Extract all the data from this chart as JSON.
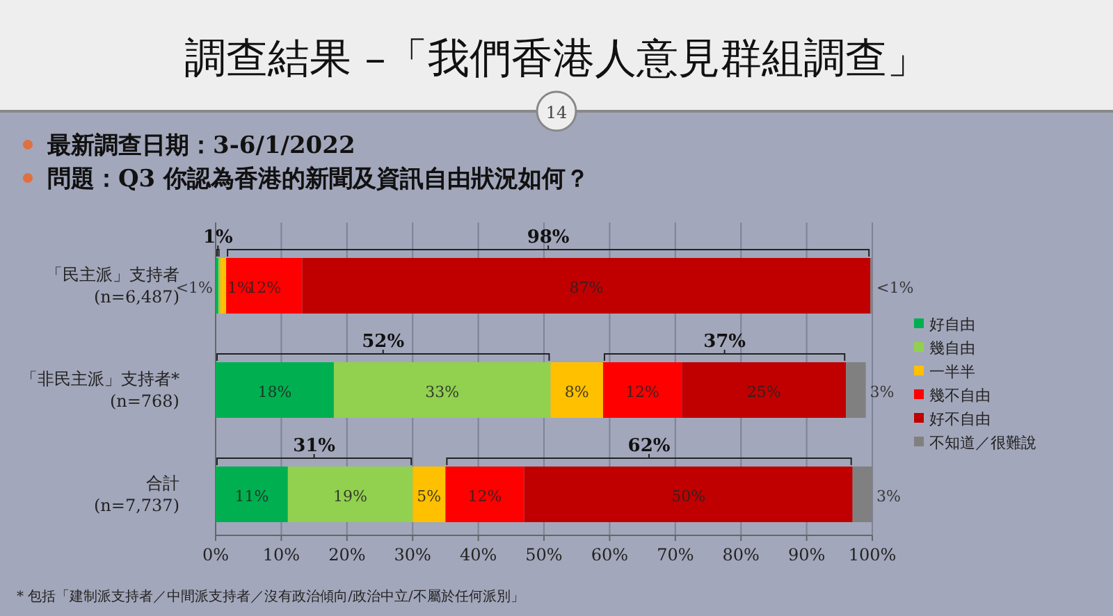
{
  "chart_data": {
    "type": "bar",
    "orientation": "horizontal",
    "stacked": true,
    "title": "調查結果 –「我們香港人意見群組調查」",
    "subtitle": "最新調查日期：3-6/1/2022\n問題：Q3 你認為香港的新聞及資訊自由狀況如何？",
    "categories": [
      "「民主派」支持者\n(n=6,487)",
      "「非民主派」支持者*\n(n=768)",
      "合計\n(n=7,737)"
    ],
    "series": [
      {
        "name": "好自由",
        "color": "#00b050",
        "values": [
          0.4,
          18,
          11
        ],
        "value_labels": [
          "<1%",
          "18%",
          "11%"
        ]
      },
      {
        "name": "幾自由",
        "color": "#92d050",
        "values": [
          0.3,
          33,
          19
        ],
        "value_labels": [
          null,
          "33%",
          "19%"
        ]
      },
      {
        "name": "一半半",
        "color": "#ffc000",
        "values": [
          0.9,
          8,
          5
        ],
        "value_labels": [
          "1%",
          "8%",
          "5%"
        ]
      },
      {
        "name": "幾不自由",
        "color": "#ff0000",
        "values": [
          11.6,
          12,
          12
        ],
        "value_labels": [
          "12%",
          "12%",
          "12%"
        ]
      },
      {
        "name": "好不自由",
        "color": "#c00000",
        "values": [
          86.5,
          25,
          50
        ],
        "value_labels": [
          "87%",
          "25%",
          "50%"
        ]
      },
      {
        "name": "不知道／很難說",
        "color": "#808080",
        "values": [
          0.3,
          3,
          3
        ],
        "value_labels": [
          "<1%",
          "3%",
          "3%"
        ]
      }
    ],
    "xlim": [
      0,
      100
    ],
    "xticks": [
      {
        "value": 0,
        "label": "0%"
      },
      {
        "value": 10,
        "label": "10%"
      },
      {
        "value": 20,
        "label": "20%"
      },
      {
        "value": 30,
        "label": "30%"
      },
      {
        "value": 40,
        "label": "40%"
      },
      {
        "value": 50,
        "label": "50%"
      },
      {
        "value": 60,
        "label": "60%"
      },
      {
        "value": 70,
        "label": "70%"
      },
      {
        "value": 80,
        "label": "80%"
      },
      {
        "value": 90,
        "label": "90%"
      },
      {
        "value": 100,
        "label": "100%"
      }
    ],
    "grid": "x",
    "legend": "right",
    "annotations": [
      "1%",
      "98%",
      "52%",
      "37%",
      "31%",
      "62%",
      "14",
      "* 包括「建制派支持者／中間派支持者／沒有政治傾向/政治中立/不屬於任何派別」"
    ]
  }
}
